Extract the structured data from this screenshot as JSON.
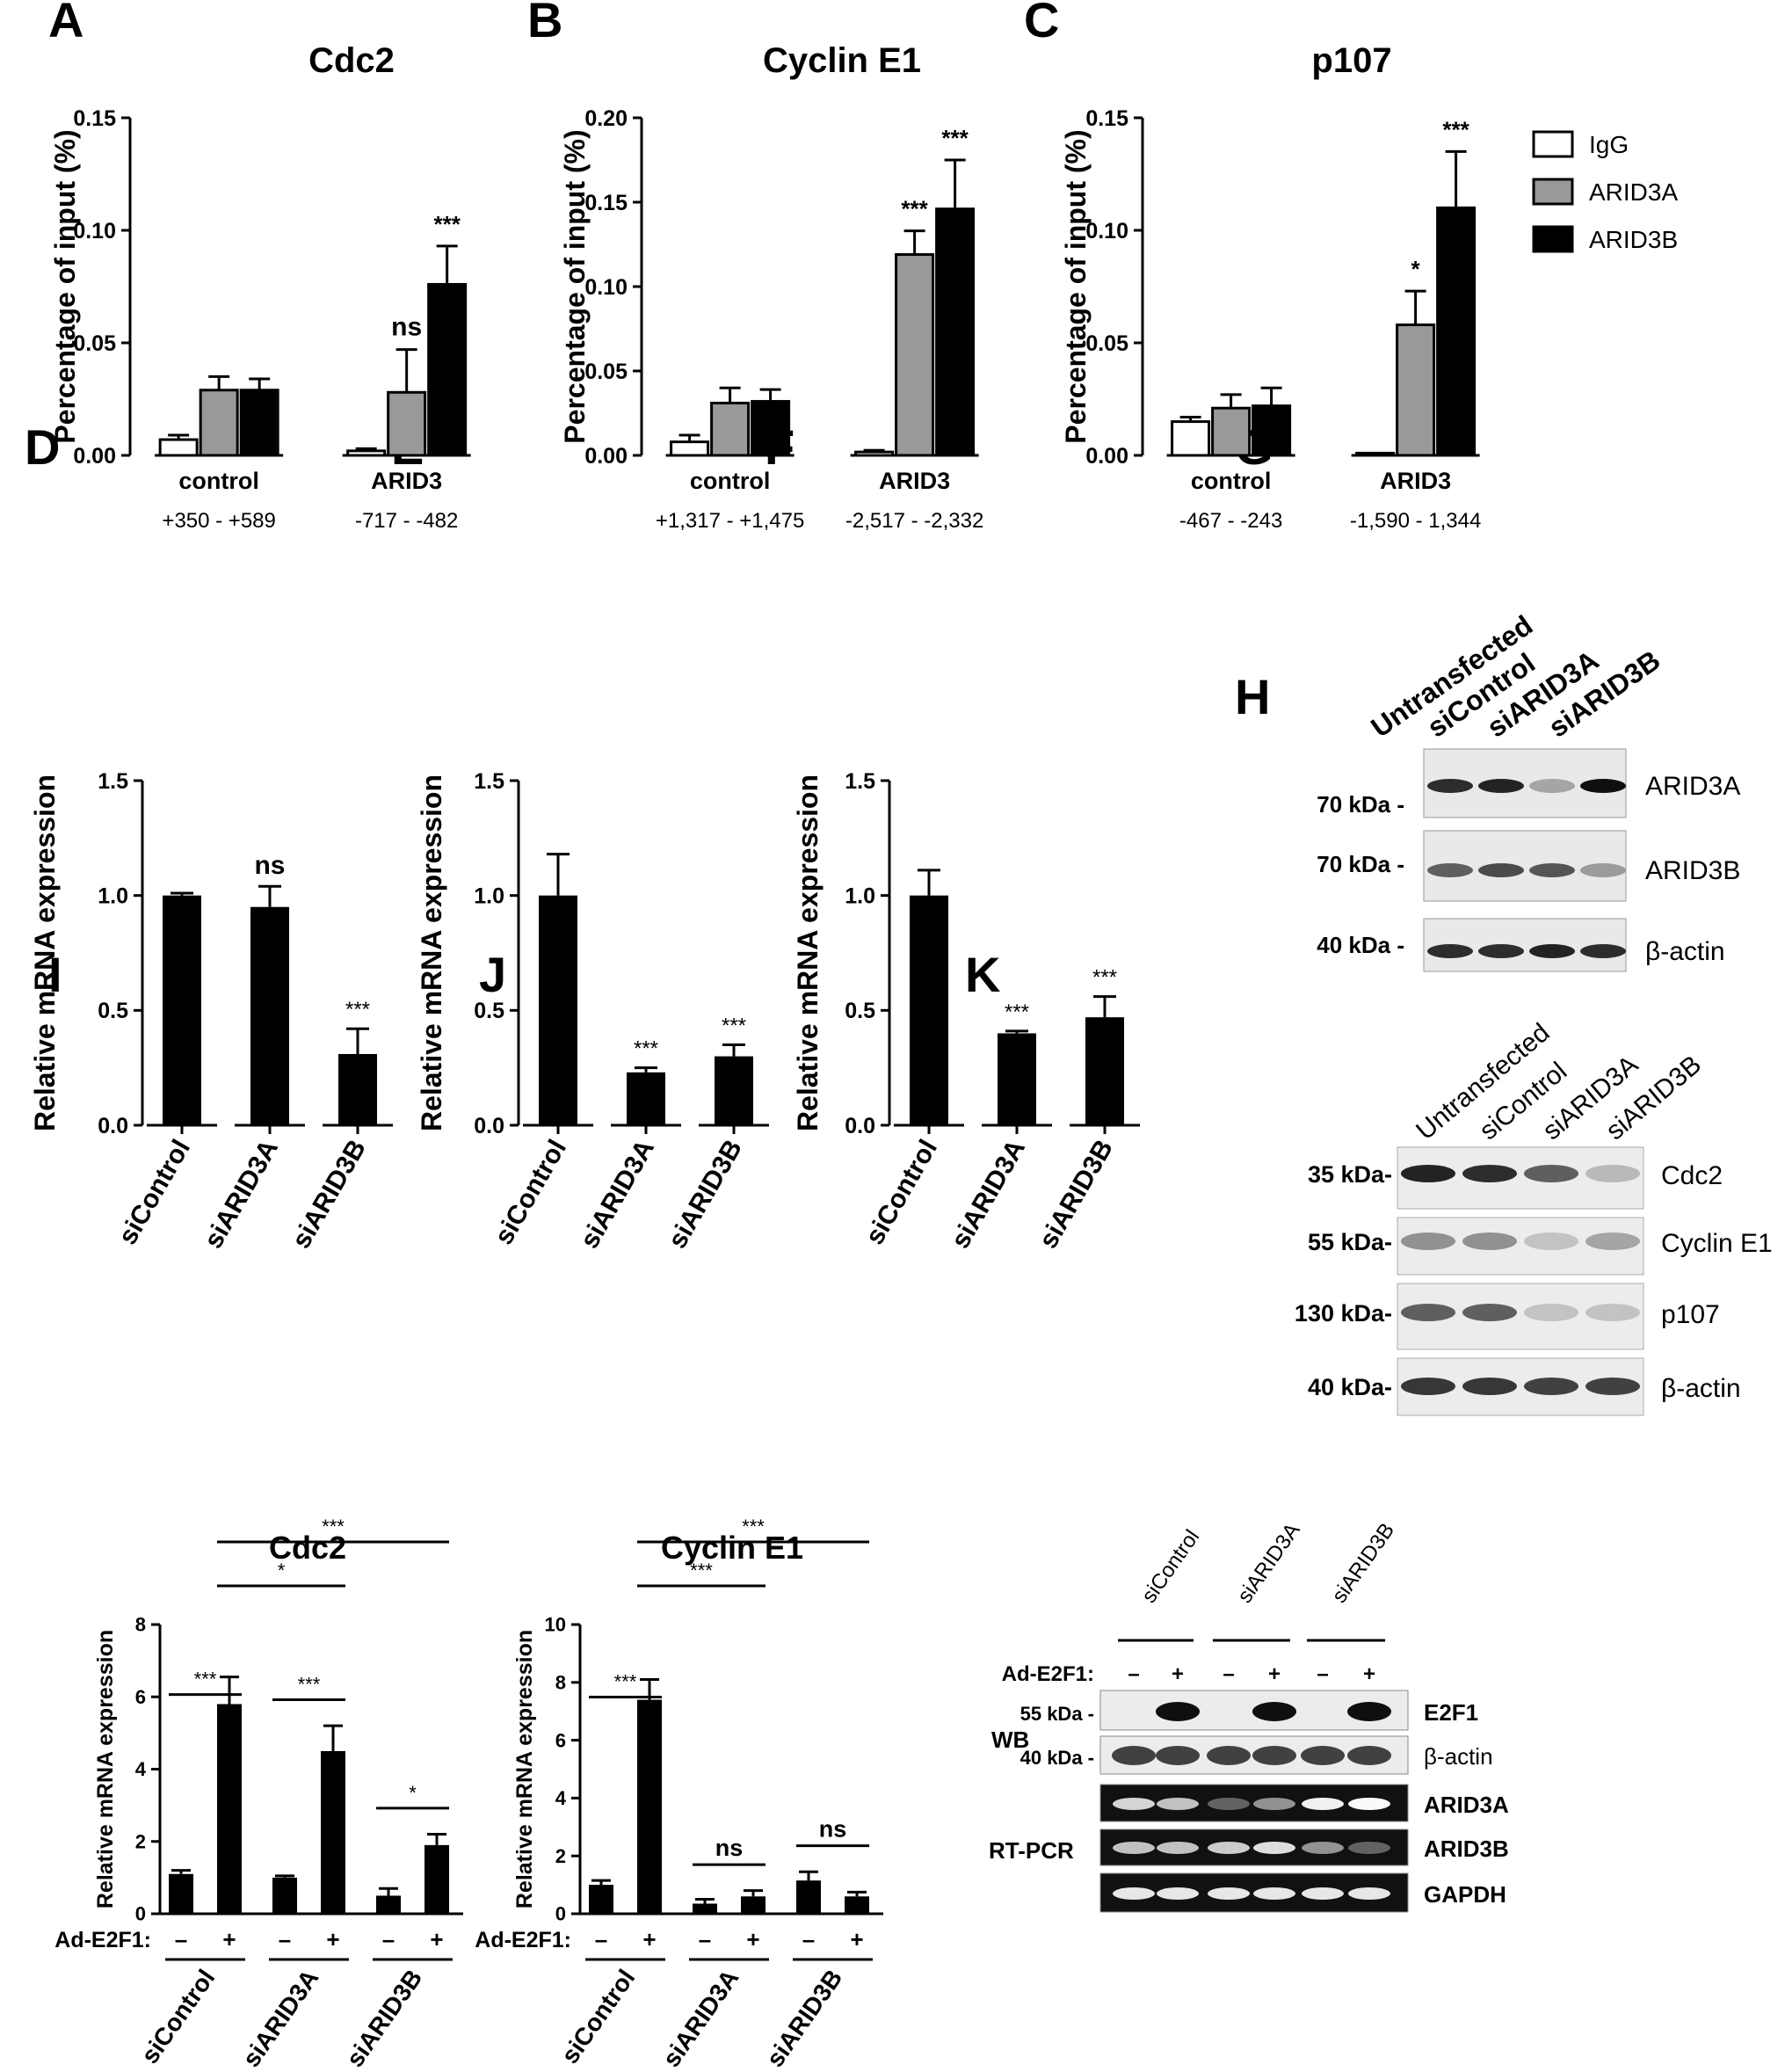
{
  "colors": {
    "igg": "#ffffff",
    "arid3a": "#999999",
    "arid3b": "#000000",
    "bar": "#000000"
  },
  "panels": [
    {
      "id": "A",
      "type": "chip"
    },
    {
      "id": "B",
      "type": "chip"
    },
    {
      "id": "C",
      "type": "chip"
    },
    {
      "id": "D",
      "type": "simple"
    },
    {
      "id": "E",
      "type": "simple"
    },
    {
      "id": "F",
      "type": "simple"
    },
    {
      "id": "G",
      "type": "blot"
    },
    {
      "id": "H",
      "type": "blot"
    },
    {
      "id": "I",
      "type": "e2f1"
    },
    {
      "id": "J",
      "type": "e2f1"
    },
    {
      "id": "K",
      "type": "blot"
    }
  ],
  "legend": [
    "IgG",
    "ARID3A",
    "ARID3B"
  ],
  "chart_data": [
    {
      "panel": "A",
      "type": "bar",
      "title": "Cdc2",
      "ylabel": "Percentage of input (%)",
      "ylim": [
        0,
        0.15
      ],
      "ytick_labels": [
        "0.00",
        "0.05",
        "0.10",
        "0.15"
      ],
      "categories": [
        "control",
        "ARID3"
      ],
      "sublabels": [
        "+350 - +589",
        "-717 - -482"
      ],
      "series": [
        {
          "name": "IgG",
          "values": [
            0.007,
            0.002
          ],
          "errors": [
            0.002,
            0.001
          ]
        },
        {
          "name": "ARID3A",
          "values": [
            0.029,
            0.028
          ],
          "errors": [
            0.006,
            0.019
          ]
        },
        {
          "name": "ARID3B",
          "values": [
            0.029,
            0.076
          ],
          "errors": [
            0.005,
            0.017
          ]
        }
      ],
      "annotations": [
        {
          "group": 1,
          "series": 1,
          "text": "ns"
        },
        {
          "group": 1,
          "series": 2,
          "text": "***"
        }
      ]
    },
    {
      "panel": "B",
      "type": "bar",
      "title": "Cyclin E1",
      "ylabel": "Percentage of input (%)",
      "ylim": [
        0,
        0.2
      ],
      "ytick_labels": [
        "0.00",
        "0.05",
        "0.10",
        "0.15",
        "0.20"
      ],
      "categories": [
        "control",
        "ARID3"
      ],
      "sublabels": [
        "+1,317 - +1,475",
        "-2,517 - -2,332"
      ],
      "series": [
        {
          "name": "IgG",
          "values": [
            0.008,
            0.002
          ],
          "errors": [
            0.004,
            0.001
          ]
        },
        {
          "name": "ARID3A",
          "values": [
            0.031,
            0.119
          ],
          "errors": [
            0.009,
            0.014
          ]
        },
        {
          "name": "ARID3B",
          "values": [
            0.032,
            0.146
          ],
          "errors": [
            0.007,
            0.029
          ]
        }
      ],
      "annotations": [
        {
          "group": 1,
          "series": 1,
          "text": "***"
        },
        {
          "group": 1,
          "series": 2,
          "text": "***"
        }
      ]
    },
    {
      "panel": "C",
      "type": "bar",
      "title": "p107",
      "ylabel": "Percentage of input (%)",
      "ylim": [
        0,
        0.15
      ],
      "ytick_labels": [
        "0.00",
        "0.05",
        "0.10",
        "0.15"
      ],
      "categories": [
        "control",
        "ARID3"
      ],
      "sublabels": [
        "-467 - -243",
        "-1,590 - 1,344"
      ],
      "series": [
        {
          "name": "IgG",
          "values": [
            0.015,
            0.001
          ],
          "errors": [
            0.002,
            0.0
          ]
        },
        {
          "name": "ARID3A",
          "values": [
            0.021,
            0.058
          ],
          "errors": [
            0.006,
            0.015
          ]
        },
        {
          "name": "ARID3B",
          "values": [
            0.022,
            0.11
          ],
          "errors": [
            0.008,
            0.025
          ]
        }
      ],
      "annotations": [
        {
          "group": 1,
          "series": 1,
          "text": "*"
        },
        {
          "group": 1,
          "series": 2,
          "text": "***"
        }
      ]
    },
    {
      "panel": "D",
      "type": "bar",
      "ylabel": "Relative mRNA expression",
      "ylim": [
        0,
        1.5
      ],
      "ytick_labels": [
        "0.0",
        "0.5",
        "1.0",
        "1.5"
      ],
      "categories": [
        "siControl",
        "siARID3A",
        "siARID3B"
      ],
      "values": [
        1.0,
        0.95,
        0.31
      ],
      "errors": [
        0.01,
        0.09,
        0.11
      ],
      "annotations": [
        "",
        "ns",
        "***"
      ]
    },
    {
      "panel": "E",
      "type": "bar",
      "ylabel": "Relative mRNA expression",
      "ylim": [
        0,
        1.5
      ],
      "ytick_labels": [
        "0.0",
        "0.5",
        "1.0",
        "1.5"
      ],
      "categories": [
        "siControl",
        "siARID3A",
        "siARID3B"
      ],
      "values": [
        1.0,
        0.23,
        0.3
      ],
      "errors": [
        0.18,
        0.02,
        0.05
      ],
      "annotations": [
        "",
        "***",
        "***"
      ]
    },
    {
      "panel": "F",
      "type": "bar",
      "ylabel": "Relative mRNA expression",
      "ylim": [
        0,
        1.5
      ],
      "ytick_labels": [
        "0.0",
        "0.5",
        "1.0",
        "1.5"
      ],
      "categories": [
        "siControl",
        "siARID3A",
        "siARID3B"
      ],
      "values": [
        1.0,
        0.4,
        0.47
      ],
      "errors": [
        0.11,
        0.01,
        0.09
      ],
      "annotations": [
        "",
        "***",
        "***"
      ]
    },
    {
      "panel": "I",
      "type": "bar",
      "title": "Cdc2",
      "ylabel": "Relative mRNA expression",
      "ylim": [
        0,
        8
      ],
      "ytick_labels": [
        "0",
        "2",
        "4",
        "6",
        "8"
      ],
      "row_label": "Ad-E2F1:",
      "signs": [
        "–",
        "+",
        "–",
        "+",
        "–",
        "+"
      ],
      "groups": [
        "siControl",
        "siARID3A",
        "siARID3B"
      ],
      "values": [
        1.1,
        5.8,
        1.0,
        4.5,
        0.5,
        1.9
      ],
      "errors": [
        0.1,
        0.75,
        0.05,
        0.7,
        0.2,
        0.3
      ],
      "brackets": [
        {
          "from": 0,
          "to": 1,
          "level": 0,
          "text": "***"
        },
        {
          "from": 1,
          "to": 3,
          "level": 1,
          "text": "*"
        },
        {
          "from": 1,
          "to": 5,
          "level": 2,
          "text": "***"
        },
        {
          "from": 2,
          "to": 3,
          "level": 3,
          "text": "***"
        },
        {
          "from": 4,
          "to": 5,
          "level": 4,
          "text": "*"
        }
      ]
    },
    {
      "panel": "J",
      "type": "bar",
      "title": "Cyclin E1",
      "ylabel": "Relative mRNA expression",
      "ylim": [
        0,
        10
      ],
      "ytick_labels": [
        "0",
        "2",
        "4",
        "6",
        "8",
        "10"
      ],
      "row_label": "Ad-E2F1:",
      "signs": [
        "–",
        "+",
        "–",
        "+",
        "–",
        "+"
      ],
      "groups": [
        "siControl",
        "siARID3A",
        "siARID3B"
      ],
      "values": [
        1.0,
        7.4,
        0.35,
        0.6,
        1.15,
        0.6
      ],
      "errors": [
        0.15,
        0.7,
        0.15,
        0.2,
        0.3,
        0.15
      ],
      "brackets": [
        {
          "from": 0,
          "to": 1,
          "level": 0,
          "text": "***"
        },
        {
          "from": 1,
          "to": 3,
          "level": 1,
          "text": "***"
        },
        {
          "from": 1,
          "to": 5,
          "level": 2,
          "text": "***"
        },
        {
          "from": 2,
          "to": 3,
          "level": 3,
          "text": "ns"
        },
        {
          "from": 4,
          "to": 5,
          "level": 4,
          "text": "ns"
        }
      ]
    }
  ],
  "blots": {
    "G": {
      "lanes": [
        "Untransfected",
        "siControl",
        "siARID3A",
        "siARID3B"
      ],
      "rows": [
        {
          "marker": "70 kDa",
          "label": "ARID3A",
          "bands": [
            0.85,
            0.9,
            0.25,
            1.0
          ]
        },
        {
          "marker": "70 kDa",
          "label": "ARID3B",
          "bands": [
            0.6,
            0.7,
            0.65,
            0.3
          ]
        },
        {
          "marker": "40 kDa",
          "label": "β-actin",
          "bands": [
            0.85,
            0.85,
            0.9,
            0.85
          ]
        }
      ]
    },
    "H": {
      "lanes": [
        "Untransfected",
        "siControl",
        "siARID3A",
        "siARID3B"
      ],
      "rows": [
        {
          "marker": "35 kDa",
          "label": "Cdc2",
          "bands": [
            0.9,
            0.85,
            0.6,
            0.15
          ]
        },
        {
          "marker": "55 kDa",
          "label": "Cyclin E1",
          "bands": [
            0.35,
            0.35,
            0.1,
            0.25
          ]
        },
        {
          "marker": "130 kDa",
          "label": "p107",
          "bands": [
            0.6,
            0.6,
            0.1,
            0.1
          ]
        },
        {
          "marker": "40 kDa",
          "label": "β-actin",
          "bands": [
            0.8,
            0.8,
            0.75,
            0.75
          ]
        }
      ]
    },
    "K": {
      "groups": [
        "siControl",
        "siARID3A",
        "siARID3B"
      ],
      "row_label": "Ad-E2F1:",
      "signs": [
        "–",
        "+",
        "–",
        "+",
        "–",
        "+"
      ],
      "section_labels": [
        "WB",
        "RT-PCR"
      ],
      "rows": [
        {
          "marker": "55 kDa",
          "label": "E2F1",
          "bands": [
            0.0,
            1.0,
            0.0,
            1.0,
            0.0,
            1.0
          ]
        },
        {
          "marker": "40 kDa",
          "label": "β-actin",
          "bands": [
            0.75,
            0.75,
            0.75,
            0.75,
            0.75,
            0.75
          ]
        },
        {
          "marker": "",
          "label": "ARID3A",
          "bands": [
            0.8,
            0.7,
            0.2,
            0.45,
            0.95,
            1.0
          ]
        },
        {
          "marker": "",
          "label": "ARID3B",
          "bands": [
            0.7,
            0.7,
            0.75,
            0.85,
            0.45,
            0.2
          ]
        },
        {
          "marker": "",
          "label": "GAPDH",
          "bands": [
            0.9,
            0.9,
            0.9,
            0.9,
            0.9,
            0.9
          ]
        }
      ]
    }
  }
}
